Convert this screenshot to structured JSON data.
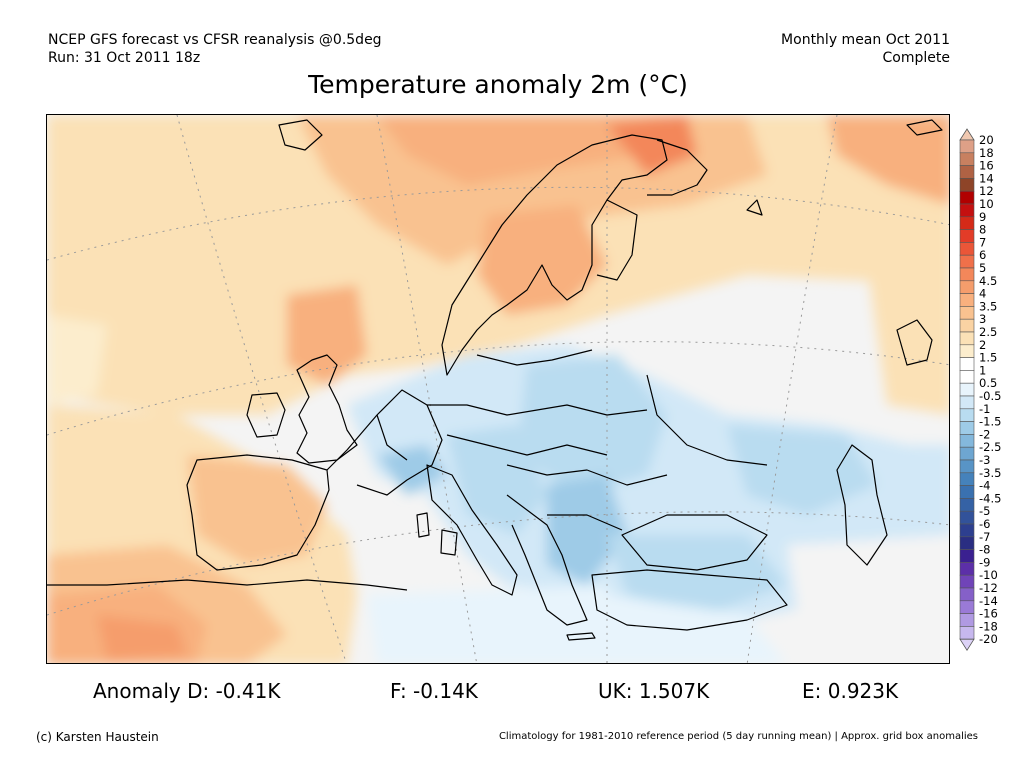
{
  "header": {
    "left_line1": "NCEP GFS forecast vs CFSR reanalysis @0.5deg",
    "left_line2": "Run: 31 Oct 2011 18z",
    "right_line1": "Monthly mean Oct 2011",
    "right_line2": "Complete"
  },
  "title": "Temperature anomaly 2m (°C)",
  "legend": {
    "labels": [
      "20",
      "18",
      "16",
      "14",
      "12",
      "10",
      "9",
      "8",
      "7",
      "6",
      "5",
      "4.5",
      "4",
      "3.5",
      "3",
      "2.5",
      "2",
      "1.5",
      "1",
      "0.5",
      "-0.5",
      "-1",
      "-1.5",
      "-2",
      "-2.5",
      "-3",
      "-3.5",
      "-4",
      "-4.5",
      "-5",
      "-6",
      "-7",
      "-8",
      "-9",
      "-10",
      "-12",
      "-14",
      "-16",
      "-18",
      "-20"
    ],
    "colors": [
      "#f0c8b0",
      "#dea087",
      "#c88060",
      "#b06244",
      "#8e4428",
      "#b10000",
      "#c41010",
      "#d52a18",
      "#e23c28",
      "#ea5638",
      "#f0704a",
      "#f3875a",
      "#f59d6c",
      "#f8b07e",
      "#f9c290",
      "#fad3a3",
      "#fbe1b6",
      "#fcedcd",
      "#ffffff",
      "#ffffff",
      "#e8f4fc",
      "#d2e8f7",
      "#b9dcf0",
      "#9ecbe7",
      "#84b8dc",
      "#6ea6d1",
      "#5894c6",
      "#4582bb",
      "#3a71b0",
      "#3562a5",
      "#32529a",
      "#2d3f8f",
      "#2a2e82",
      "#3a2090",
      "#5c2fa8",
      "#7044b8",
      "#8560c8",
      "#9a7ad6",
      "#b09ae2",
      "#c7b8ee",
      "#dcd2f6"
    ]
  },
  "stats": {
    "anomaly_d": "Anomaly D: -0.41K",
    "f": "F: -0.14K",
    "uk": "UK: 1.507K",
    "e": "E: 0.923K"
  },
  "footer": {
    "copyright": "(c) Karsten Haustein",
    "note": "Climatology for 1981-2010 reference period (5 day running mean) | Approx. grid box anomalies"
  }
}
